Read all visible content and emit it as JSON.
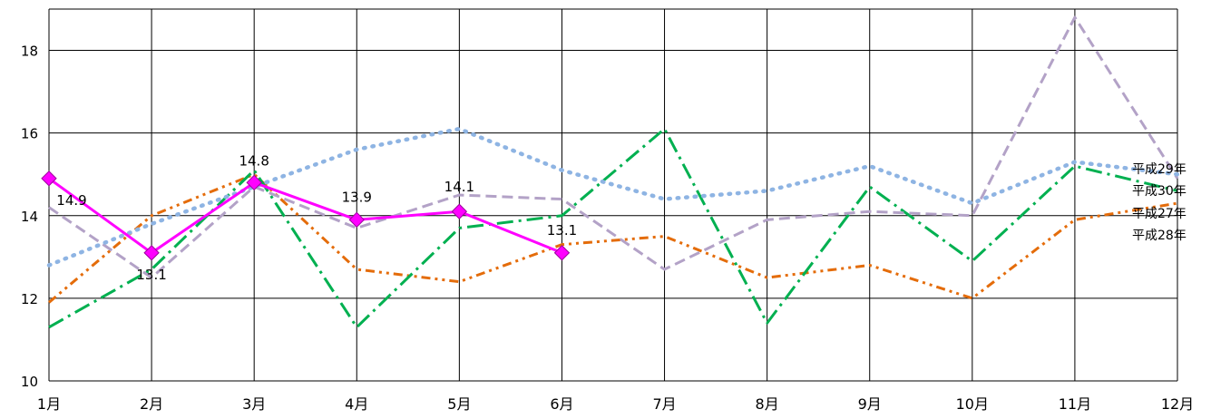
{
  "chart_data": {
    "type": "line",
    "categories": [
      "1月",
      "2月",
      "3月",
      "4月",
      "5月",
      "6月",
      "7月",
      "8月",
      "9月",
      "10月",
      "11月",
      "12月"
    ],
    "ylim": [
      10,
      19
    ],
    "yticks": [
      10,
      12,
      14,
      16,
      18
    ],
    "grid": true,
    "series": [
      {
        "name": "平成29年",
        "color": "#8EB4E3",
        "style": "dotted",
        "values": [
          12.8,
          13.8,
          14.7,
          15.6,
          16.1,
          15.1,
          14.4,
          14.6,
          15.2,
          14.3,
          15.3,
          15.0
        ]
      },
      {
        "name": "平成30年",
        "color": "#FF00FF",
        "style": "solid-marker",
        "values": [
          14.9,
          13.1,
          14.8,
          13.9,
          14.1,
          13.1,
          null,
          null,
          null,
          null,
          null,
          null
        ],
        "labels": [
          "14.9",
          "13.1",
          "14.8",
          "13.9",
          "14.1",
          "13.1"
        ]
      },
      {
        "name": "平成27年",
        "color": "#00B050",
        "style": "dashdot",
        "values": [
          11.3,
          12.7,
          15.1,
          11.3,
          13.7,
          14.0,
          16.1,
          11.4,
          14.7,
          12.9,
          15.2,
          14.6
        ]
      },
      {
        "name": "平成28年",
        "color": "#E46C0A",
        "style": "dashdotdot",
        "values": [
          11.9,
          14.0,
          15.0,
          12.7,
          12.4,
          13.3,
          13.5,
          12.5,
          12.8,
          12.0,
          13.9,
          14.3
        ]
      },
      {
        "name": "",
        "color": "#B3A2C7",
        "style": "dashed",
        "values": [
          14.2,
          12.5,
          14.7,
          13.7,
          14.5,
          14.4,
          12.7,
          13.9,
          14.1,
          14.0,
          18.8,
          14.9
        ]
      }
    ]
  }
}
